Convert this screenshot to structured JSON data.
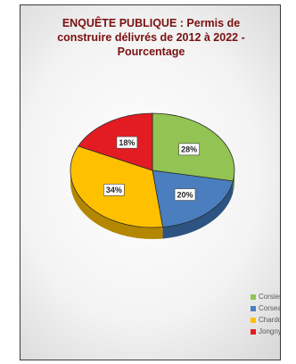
{
  "title": {
    "line1": "ENQUÊTE PUBLIQUE : Permis de",
    "line2": "construire délivrés de 2012 à 2022 -",
    "line3": "Pourcentage"
  },
  "chart_data": {
    "type": "pie",
    "title": "ENQUÊTE PUBLIQUE : Permis de construire délivrés de 2012 à 2022 - Pourcentage",
    "categories": [
      "Corsier",
      "Corseaux",
      "Chardonne",
      "Jongny"
    ],
    "values": [
      28,
      20,
      34,
      18
    ],
    "labels": [
      "28%",
      "20%",
      "34%",
      "18%"
    ],
    "colors": [
      "#92c353",
      "#4a7ebf",
      "#ffc000",
      "#e31b23"
    ],
    "side_colors": [
      "#5f862f",
      "#2c5381",
      "#b38700",
      "#9a0f14"
    ],
    "style": "3d",
    "legend_position": "bottom-right"
  },
  "legend": {
    "items": [
      {
        "label": "Corsier",
        "color": "#92c353"
      },
      {
        "label": "Corseaux",
        "color": "#4a7ebf"
      },
      {
        "label": "Chardonne",
        "color": "#ffc000"
      },
      {
        "label": "Jongny",
        "color": "#e31b23"
      }
    ]
  }
}
